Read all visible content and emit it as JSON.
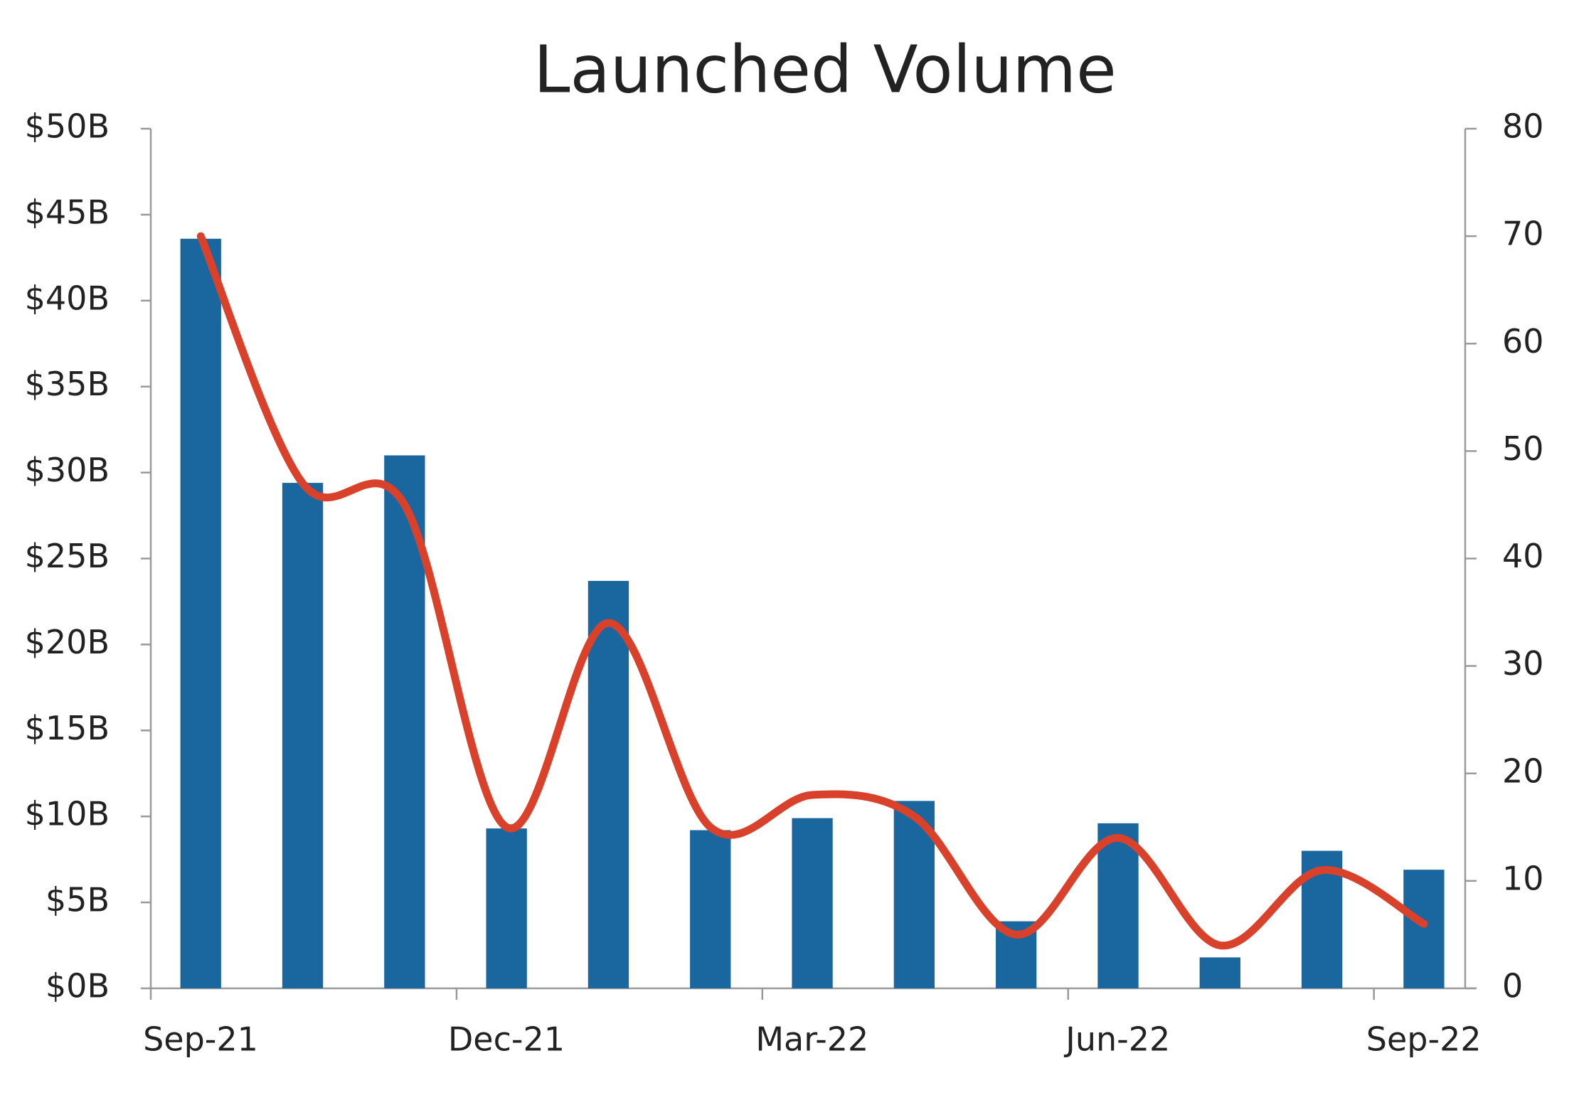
{
  "chart_data": {
    "type": "bar-line",
    "title": "Launched Volume",
    "categories": [
      "Sep-21",
      null,
      null,
      "Dec-21",
      null,
      null,
      "Mar-22",
      null,
      null,
      "Jun-22",
      null,
      null,
      "Sep-22"
    ],
    "series": [
      {
        "type": "bar",
        "color": "#1a67a0",
        "values": [
          43.6,
          29.4,
          31.0,
          9.3,
          23.7,
          9.2,
          9.9,
          10.9,
          3.9,
          9.6,
          1.8,
          8.0,
          6.9
        ]
      },
      {
        "type": "line",
        "axis": "y2",
        "color": "#d9412a",
        "values": [
          70,
          47,
          45,
          15,
          34,
          15,
          18,
          16,
          5,
          14,
          4,
          11,
          6
        ]
      }
    ],
    "ylim": [
      0,
      50
    ],
    "yticks": [
      {
        "value": 0,
        "label": "$0B"
      },
      {
        "value": 5,
        "label": "$5B"
      },
      {
        "value": 10,
        "label": "$10B"
      },
      {
        "value": 15,
        "label": "$15B"
      },
      {
        "value": 20,
        "label": "$20B"
      },
      {
        "value": 25,
        "label": "$25B"
      },
      {
        "value": 30,
        "label": "$30B"
      },
      {
        "value": 35,
        "label": "$35B"
      },
      {
        "value": 40,
        "label": "$40B"
      },
      {
        "value": 45,
        "label": "$45B"
      },
      {
        "value": 50,
        "label": "$50B"
      }
    ],
    "y2lim": [
      0,
      80
    ],
    "y2ticks": [
      0,
      10,
      20,
      30,
      40,
      50,
      60,
      70,
      80
    ],
    "grid": false
  }
}
